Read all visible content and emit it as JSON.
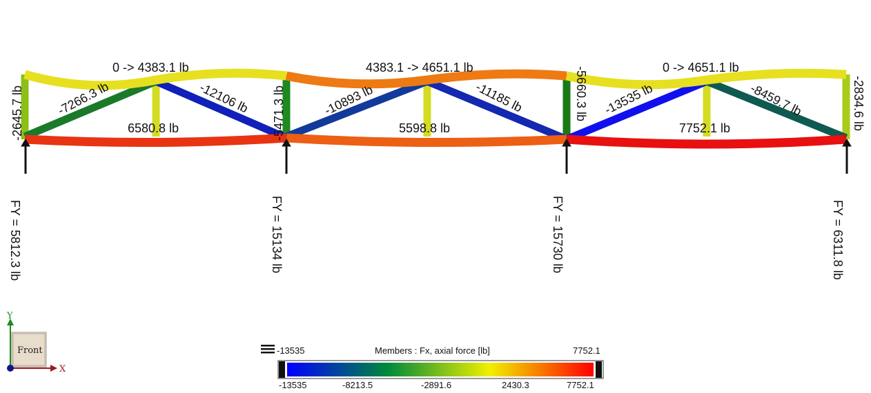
{
  "members": [
    {
      "id": "top-1",
      "label": "0 -> 4383.1 lb",
      "color": "#e6e020"
    },
    {
      "id": "top-2",
      "label": "4383.1 -> 4651.1 lb",
      "color": "#ee7a14"
    },
    {
      "id": "top-3",
      "label": "0 -> 4651.1 lb",
      "color": "#e6e020"
    },
    {
      "id": "bottom-1",
      "label": "6580.8 lb",
      "color": "#e83412"
    },
    {
      "id": "bottom-2",
      "label": "5598.8 lb",
      "color": "#ec5f14"
    },
    {
      "id": "bottom-3",
      "label": "7752.1 lb",
      "color": "#e81010"
    },
    {
      "id": "diag-1a",
      "label": "-7266.3 lb",
      "color": "#1a7a2a"
    },
    {
      "id": "diag-1b",
      "label": "-12106 lb",
      "color": "#1020b8"
    },
    {
      "id": "diag-2a",
      "label": "-10893 lb",
      "color": "#123a9a"
    },
    {
      "id": "diag-2b",
      "label": "-11185 lb",
      "color": "#1428b0"
    },
    {
      "id": "diag-3a",
      "label": "-13535 lb",
      "color": "#1010ee"
    },
    {
      "id": "diag-3b",
      "label": "-8459.7 lb",
      "color": "#0e5a50"
    },
    {
      "id": "vert-end-left",
      "label": "-2645.7 lb",
      "color": "#8cbf16"
    },
    {
      "id": "vert-support-2",
      "label": "-5471.3 lb",
      "color": "#1e8a20"
    },
    {
      "id": "vert-support-3",
      "label": "-5660.3 lb",
      "color": "#1a7a18"
    },
    {
      "id": "vert-end-right",
      "label": "-2834.6 lb",
      "color": "#a8cc18"
    },
    {
      "id": "vert-mid-1",
      "label": "",
      "color": "#d4dc22"
    },
    {
      "id": "vert-mid-2",
      "label": "",
      "color": "#d4dc22"
    },
    {
      "id": "vert-mid-3",
      "label": "",
      "color": "#d4dc22"
    }
  ],
  "reactions": [
    {
      "label": "FY = 5812.3 lb"
    },
    {
      "label": "FY = 15134 lb"
    },
    {
      "label": "FY = 15730 lb"
    },
    {
      "label": "FY = 6311.8 lb"
    }
  ],
  "legend": {
    "title": "Members : Fx, axial force [lb]",
    "min_label": "-13535",
    "max_label": "7752.1",
    "ticks": [
      "-13535",
      "-8213.5",
      "-2891.6",
      "2430.3",
      "7752.1"
    ],
    "gradient_colors": [
      "#0000ff",
      "#008a3a",
      "#f0f000",
      "#ff0000"
    ]
  },
  "view_cube": {
    "face_label": "Front",
    "y_axis_label": "Y",
    "x_axis_label": "X",
    "y_axis_color": "#1e8a1e",
    "x_axis_color": "#9a1a1a"
  }
}
